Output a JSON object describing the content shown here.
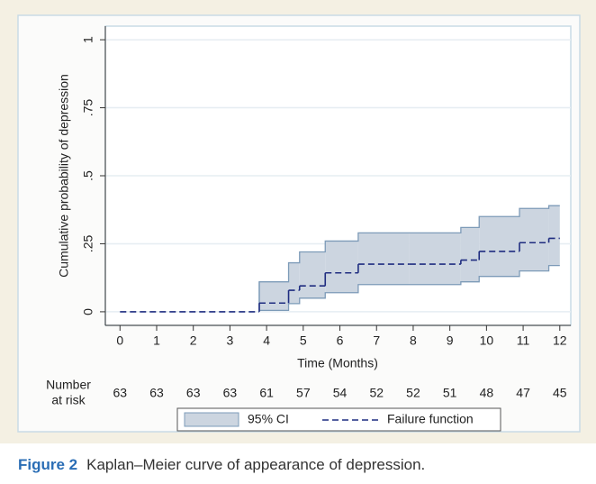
{
  "chart_data": {
    "type": "step",
    "y_label": "Cumulative probability of depression",
    "x_label": "Time (Months)",
    "xlim": [
      -0.4,
      12.3
    ],
    "ylim": [
      -0.05,
      1.05
    ],
    "xticks": [
      0,
      1,
      2,
      3,
      4,
      5,
      6,
      7,
      8,
      9,
      10,
      11,
      12
    ],
    "yticks": [
      0,
      {
        "value": 0.25,
        "label": ".25"
      },
      {
        "value": 0.5,
        "label": ".5"
      },
      {
        "value": 0.75,
        "label": ".75"
      },
      1
    ],
    "grid": true,
    "x": [
      0,
      3.8,
      4.6,
      4.9,
      5.6,
      6.5,
      7.9,
      9.3,
      9.8,
      10.9,
      11.7,
      12
    ],
    "series": [
      {
        "name": "95% CI",
        "color": "#ccd5e0",
        "edge_color": "#7d9bb8",
        "lower": [
          null,
          0.005,
          0.03,
          0.05,
          0.07,
          0.1,
          0.1,
          0.11,
          0.13,
          0.15,
          0.17,
          0.17
        ],
        "upper": [
          null,
          0.11,
          0.18,
          0.22,
          0.26,
          0.29,
          0.29,
          0.31,
          0.35,
          0.38,
          0.39,
          0.39
        ]
      },
      {
        "name": "Failure function",
        "color": "#1f2d80",
        "values": [
          0,
          0.032,
          0.079,
          0.095,
          0.143,
          0.175,
          0.175,
          0.19,
          0.222,
          0.254,
          0.27,
          0.27
        ]
      }
    ],
    "risk_label_lines": [
      "Number",
      "at risk"
    ],
    "number_at_risk": [
      63,
      63,
      63,
      63,
      61,
      57,
      54,
      52,
      52,
      51,
      48,
      47,
      45
    ]
  },
  "caption": {
    "label": "Figure 2",
    "text": "Kaplan–Meier curve of appearance of depression."
  }
}
